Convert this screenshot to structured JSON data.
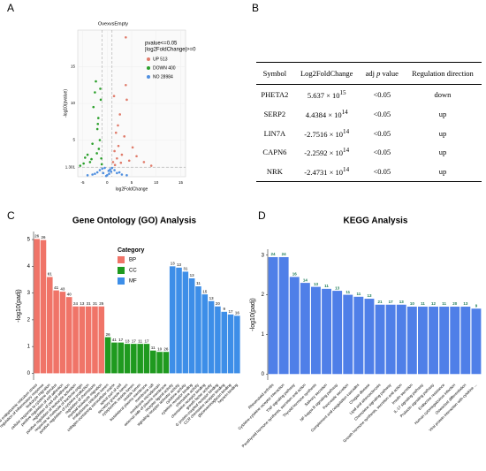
{
  "chart_data": [
    {
      "type": "scatter",
      "panel": "A",
      "title": "OvexvsEmpty",
      "xlabel": "log2FoldChange",
      "ylabel": "-log10(pvalue)",
      "legend_title": [
        "pvalue<=0.05",
        "|log2FoldChange|>=0"
      ],
      "xlim": [
        -6,
        16
      ],
      "ylim": [
        0,
        20
      ],
      "xticks": [
        -5,
        0,
        5,
        10,
        15
      ],
      "yticks": [
        1.301,
        5,
        10,
        15
      ],
      "hline": 1.301,
      "vlines": [
        -1,
        1
      ],
      "grid": true,
      "series": [
        {
          "name": "UP 513",
          "color": "#e07b6a",
          "x": [
            1.2,
            1.5,
            1.8,
            2.0,
            2.3,
            2.6,
            3.0,
            3.5,
            4.0,
            4.5,
            5.2,
            6.0,
            7.5,
            1.4,
            2.2,
            3.8,
            1.6,
            2.8,
            3.8,
            9.0
          ],
          "values": [
            2.0,
            3.5,
            6.0,
            2.5,
            4.2,
            8.5,
            3.0,
            5.5,
            10.5,
            2.2,
            4.0,
            2.8,
            2.0,
            11.0,
            7.0,
            19.0,
            1.6,
            1.9,
            12.5,
            1.5
          ]
        },
        {
          "name": "DOWN 400",
          "color": "#2ca02c",
          "x": [
            -1.2,
            -1.5,
            -1.8,
            -2.1,
            -2.5,
            -3.0,
            -3.5,
            -4.0,
            -4.8,
            -5.5,
            -1.4,
            -2.0,
            -2.8,
            -1.1,
            -1.7,
            -3.2,
            -2.3,
            -1.3,
            -4.5,
            -1.9
          ],
          "values": [
            2.5,
            5.0,
            8.0,
            3.2,
            11.5,
            4.5,
            2.0,
            3.0,
            1.8,
            1.5,
            12.0,
            6.5,
            9.5,
            1.7,
            3.8,
            2.4,
            13.0,
            10.5,
            2.6,
            7.2
          ]
        },
        {
          "name": "NO 28984",
          "color": "#4f8fe0",
          "x": [
            -3,
            -2,
            -1.5,
            -1,
            -0.5,
            0,
            0.3,
            0.6,
            1,
            1.5,
            2,
            3,
            -0.8,
            -0.2,
            0.4,
            0.8,
            -2.5,
            2.5,
            -4,
            4
          ],
          "values": [
            0.3,
            0.6,
            0.9,
            1.1,
            1.2,
            0.2,
            0.8,
            1.0,
            1.2,
            0.9,
            0.5,
            0.3,
            0.5,
            0.1,
            0.4,
            0.7,
            0.4,
            0.6,
            0.2,
            0.2
          ]
        }
      ]
    },
    {
      "type": "bar",
      "panel": "C",
      "title": "Gene Ontology (GO) Analysis",
      "ylabel": "-log10(padj)",
      "legend_title": "Category",
      "ylim": [
        -0.25,
        5.3
      ],
      "yticks": [
        0,
        1,
        2,
        3,
        4,
        5
      ],
      "series": [
        {
          "name": "BP",
          "color": "#f07468",
          "categories": [
            "response to endoplasmic reticulum stress",
            "regulation of inflammatory response",
            "leukocyte migration",
            "cellular response to cytokine stimulus",
            "positive regulation of cell adhesion",
            "regulation of cell-cell adhesion",
            "positive regulation of leukocyte activation",
            "response to molecule of bacterial origin",
            "positive regulation of cytokine production",
            "regulation of chemotaxis",
            "myeloid leukocyte migration"
          ],
          "values": [
            5.02,
            4.98,
            3.6,
            3.1,
            3.05,
            2.85,
            2.5,
            2.5,
            2.5,
            2.5,
            2.5
          ],
          "counts": [
            26,
            26,
            61,
            41,
            43,
            40,
            24,
            13,
            31,
            31,
            25
          ]
        },
        {
          "name": "CC",
          "color": "#1f9a1f",
          "categories": [
            "endoplasmic reticulum lumen",
            "collagen-containing extracellular matrix",
            "apical part of cell",
            "secretory granule lumen",
            "cytoplasmic vesicle lumen",
            "vesicle lumen",
            "basolateral plasma membrane",
            "membrane raft",
            "membrane microdomain",
            "external side of plasma membrane"
          ],
          "values": [
            1.35,
            1.15,
            1.15,
            1.1,
            1.1,
            1.1,
            1.1,
            0.85,
            0.8,
            0.8
          ],
          "counts": [
            26,
            41,
            17,
            13,
            17,
            11,
            17,
            11,
            10,
            26
          ]
        },
        {
          "name": "MF",
          "color": "#3d8ee8",
          "categories": [
            "receptor ligand activity",
            "signaling receptor activator activity",
            "cytokine activity",
            "cytokine receptor binding",
            "chemokine activity",
            "chemokine receptor binding",
            "growth factor activity",
            "G protein-coupled receptor binding",
            "CCR chemokine receptor binding",
            "glycosaminoglycan binding",
            "heparin binding"
          ],
          "values": [
            4.0,
            3.95,
            3.8,
            3.55,
            3.25,
            2.95,
            2.7,
            2.5,
            2.3,
            2.2,
            2.15
          ],
          "counts": [
            13,
            13,
            31,
            13,
            11,
            15,
            13,
            20,
            9,
            17,
            16
          ]
        }
      ]
    },
    {
      "type": "bar",
      "panel": "D",
      "title": "KEGG Analysis",
      "ylabel": "-log10(padj)",
      "color": "#4f7fe8",
      "ylim": [
        -0.15,
        3.15
      ],
      "yticks": [
        0,
        1,
        2,
        3
      ],
      "categories": [
        "Rheumatoid arthritis",
        "Cytokine-cytokine receptor interaction",
        "TNF signaling pathway",
        "Parathyroid hormone synthesis, secretion and action",
        "Thyroid hormone synthesis",
        "Salivary secretion",
        "NF-kappa B signaling pathway",
        "Pancreatic secretion",
        "Complement and coagulation cascades",
        "Chagas disease",
        "Lipid and atherosclerosis",
        "Chemokine signaling pathway",
        "Growth hormone synthesis, secretion and action",
        "Insulin secretion",
        "IL-17 signaling pathway",
        "Prolactin signaling pathway",
        "Endocrine resistance",
        "Human cytomegalovirus infection",
        "Osteoclast differentiation",
        "Viral protein interaction with cytokine ..."
      ],
      "values": [
        2.95,
        2.95,
        2.45,
        2.3,
        2.2,
        2.15,
        2.1,
        2.0,
        1.95,
        1.9,
        1.75,
        1.75,
        1.75,
        1.7,
        1.7,
        1.7,
        1.7,
        1.7,
        1.7,
        1.65
      ],
      "counts": [
        24,
        24,
        16,
        14,
        13,
        11,
        13,
        11,
        11,
        13,
        21,
        17,
        13,
        10,
        11,
        12,
        11,
        20,
        13,
        9
      ]
    }
  ],
  "table": {
    "panel": "B",
    "columns": [
      "Symbol",
      "Log2FoldChange",
      {
        "pre": "adj",
        "italic": "p",
        "post": "value"
      },
      "Regulation direction"
    ],
    "rows": [
      [
        "PHETA2",
        {
          "base": "5.637 × 10",
          "exp": "15"
        },
        "<0.05",
        "down"
      ],
      [
        "SERP2",
        {
          "base": "4.4384 × 10",
          "exp": "14"
        },
        "<0.05",
        "up"
      ],
      [
        "LIN7A",
        {
          "base": "-2.7516 × 10",
          "exp": "14"
        },
        "<0.05",
        "up"
      ],
      [
        "CAPN6",
        {
          "base": "-2.2592 × 10",
          "exp": "14"
        },
        "<0.05",
        "up"
      ],
      [
        "NRK",
        {
          "base": "-2.4731 × 10",
          "exp": "14"
        },
        "<0.05",
        "up"
      ]
    ]
  }
}
